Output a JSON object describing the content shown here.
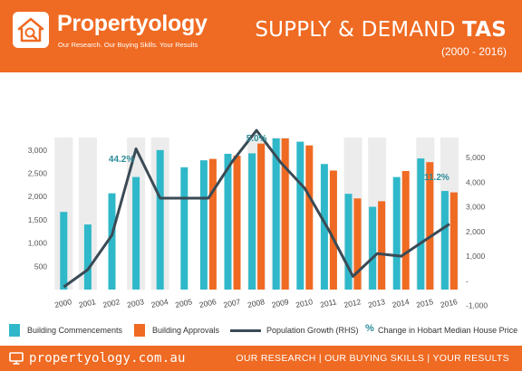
{
  "brand": {
    "name": "Propertyology",
    "tagline": "Our Research. Our Buying Skills. Your Results"
  },
  "header": {
    "title_prefix": "SUPPLY & DEMAND ",
    "title_bold": "TAS",
    "years": "(2000 - 2016)"
  },
  "colors": {
    "orange": "#ef6a22",
    "teal": "#2fb8c9",
    "line": "#3a4a55",
    "annotation": "#2a8c97",
    "band": "#ececec"
  },
  "chart_data": {
    "type": "bar",
    "categories": [
      "2000",
      "2001",
      "2002",
      "2003",
      "2004",
      "2005",
      "2006",
      "2007",
      "2008",
      "2009",
      "2010",
      "2011",
      "2012",
      "2013",
      "2014",
      "2015",
      "2016"
    ],
    "series": [
      {
        "name": "Building Commencements",
        "axis": "left",
        "color": "#2fb8c9",
        "values": [
          1670,
          1400,
          2070,
          2420,
          3000,
          2630,
          2780,
          2920,
          2930,
          3250,
          3180,
          2700,
          2060,
          1780,
          2420,
          2820,
          2120
        ]
      },
      {
        "name": "Building Approvals",
        "axis": "left",
        "color": "#ef6a22",
        "values": [
          null,
          null,
          null,
          null,
          null,
          null,
          2810,
          2880,
          3140,
          3250,
          3100,
          2560,
          1960,
          1900,
          2550,
          2740,
          2090
        ]
      },
      {
        "name": "Population Growth (RHS)",
        "axis": "right",
        "type": "line",
        "color": "#3a4a55",
        "values": [
          -250,
          450,
          1850,
          5350,
          3350,
          3350,
          3350,
          4850,
          6100,
          4800,
          3750,
          2050,
          180,
          1100,
          1000,
          1650,
          2300
        ]
      }
    ],
    "left_axis": {
      "min": 0,
      "max": 3250,
      "ticks": [
        500,
        1000,
        1500,
        2000,
        2500,
        3000
      ],
      "tick_labels": [
        "500",
        "1,000",
        "1,500",
        "2,000",
        "2,500",
        "3,000"
      ]
    },
    "right_axis": {
      "min": -1200,
      "max": 5700,
      "ticks": [
        -1000,
        0,
        1000,
        2000,
        3000,
        4000,
        5000
      ],
      "tick_labels": [
        "-1,000",
        "-",
        "1,000",
        "2,000",
        "3,000",
        "4,000",
        "5,000"
      ]
    },
    "annotations": [
      {
        "category": "2003",
        "text": "44.2%"
      },
      {
        "category": "2008",
        "text": "5.0%"
      },
      {
        "category": "2016",
        "text": "11.2%"
      }
    ],
    "shaded_categories": [
      "2000",
      "2001",
      "2003",
      "2004",
      "2008",
      "2009",
      "2012",
      "2013",
      "2015",
      "2016"
    ],
    "grid": false,
    "legend_position": "bottom"
  },
  "legend": {
    "commencements": "Building Commencements",
    "approvals": "Building Approvals",
    "population": "Population Growth (RHS)",
    "pct_symbol": "%",
    "house_price": "Change in Hobart Median House Price"
  },
  "footer": {
    "url": "propertyology.com.au",
    "tagline": "OUR RESEARCH | OUR BUYING SKILLS | YOUR RESULTS"
  }
}
